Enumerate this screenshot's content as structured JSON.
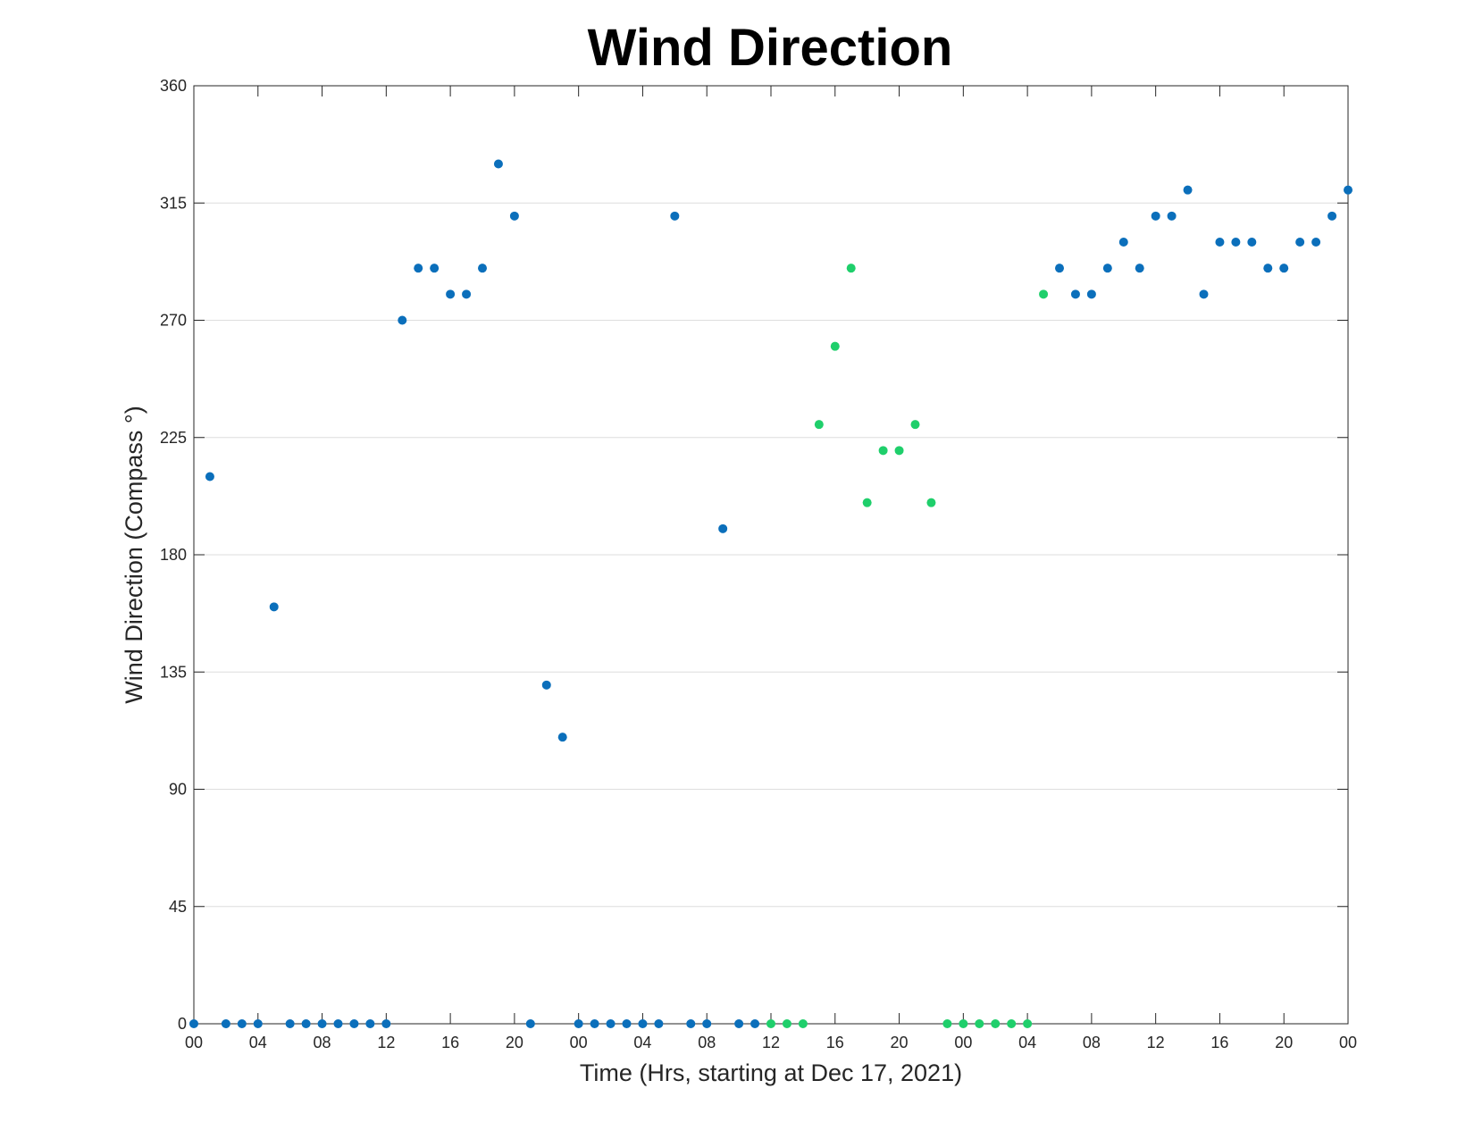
{
  "chart_data": {
    "type": "scatter",
    "title": "Wind Direction",
    "xlabel": "Time (Hrs, starting at Dec 17, 2021)",
    "ylabel": "Wind Direction (Compass °)",
    "ylim": [
      0,
      360
    ],
    "yticks": [
      "0",
      "45",
      "90",
      "135",
      "180",
      "225",
      "270",
      "315",
      "360"
    ],
    "xlim": [
      "2021-12-17 00:00",
      "2021-12-20 00:00"
    ],
    "xticks": [
      "00",
      "04",
      "08",
      "12",
      "16",
      "20",
      "00",
      "04",
      "08",
      "12",
      "16",
      "20",
      "00",
      "04",
      "08",
      "12",
      "16",
      "20",
      "00"
    ],
    "grid": "horizontal",
    "colors": {
      "blue": "#0b6fbb",
      "green": "#1fcf6b"
    },
    "series": [
      {
        "color": "blue",
        "points": [
          [
            "2021-12-17 00:00",
            0
          ],
          [
            "2021-12-17 01:00",
            210
          ],
          [
            "2021-12-17 02:00",
            0
          ],
          [
            "2021-12-17 03:00",
            0
          ],
          [
            "2021-12-17 04:00",
            0
          ],
          [
            "2021-12-17 05:00",
            160
          ],
          [
            "2021-12-17 06:00",
            0
          ],
          [
            "2021-12-17 07:00",
            0
          ],
          [
            "2021-12-17 08:00",
            0
          ],
          [
            "2021-12-17 09:00",
            0
          ],
          [
            "2021-12-17 10:00",
            0
          ],
          [
            "2021-12-17 11:00",
            0
          ],
          [
            "2021-12-17 12:00",
            0
          ],
          [
            "2021-12-17 13:00",
            270
          ],
          [
            "2021-12-17 14:00",
            290
          ],
          [
            "2021-12-17 15:00",
            290
          ],
          [
            "2021-12-17 16:00",
            280
          ],
          [
            "2021-12-17 17:00",
            280
          ],
          [
            "2021-12-17 18:00",
            290
          ],
          [
            "2021-12-17 19:00",
            330
          ],
          [
            "2021-12-17 20:00",
            310
          ],
          [
            "2021-12-17 21:00",
            0
          ],
          [
            "2021-12-17 22:00",
            130
          ],
          [
            "2021-12-17 23:00",
            110
          ],
          [
            "2021-12-18 00:00",
            0
          ],
          [
            "2021-12-18 01:00",
            0
          ],
          [
            "2021-12-18 02:00",
            0
          ],
          [
            "2021-12-18 03:00",
            0
          ],
          [
            "2021-12-18 04:00",
            0
          ],
          [
            "2021-12-18 05:00",
            0
          ],
          [
            "2021-12-18 06:00",
            310
          ],
          [
            "2021-12-18 07:00",
            0
          ],
          [
            "2021-12-18 08:00",
            0
          ],
          [
            "2021-12-18 09:00",
            190
          ],
          [
            "2021-12-18 10:00",
            0
          ],
          [
            "2021-12-18 11:00",
            0
          ],
          [
            "2021-12-19 06:00",
            290
          ],
          [
            "2021-12-19 07:00",
            280
          ],
          [
            "2021-12-19 08:00",
            280
          ],
          [
            "2021-12-19 09:00",
            290
          ],
          [
            "2021-12-19 10:00",
            300
          ],
          [
            "2021-12-19 11:00",
            290
          ],
          [
            "2021-12-19 12:00",
            310
          ],
          [
            "2021-12-19 13:00",
            310
          ],
          [
            "2021-12-19 14:00",
            320
          ],
          [
            "2021-12-19 15:00",
            280
          ],
          [
            "2021-12-19 16:00",
            300
          ],
          [
            "2021-12-19 17:00",
            300
          ],
          [
            "2021-12-19 18:00",
            300
          ],
          [
            "2021-12-19 19:00",
            290
          ],
          [
            "2021-12-19 20:00",
            290
          ],
          [
            "2021-12-19 21:00",
            300
          ],
          [
            "2021-12-19 22:00",
            300
          ],
          [
            "2021-12-19 23:00",
            310
          ],
          [
            "2021-12-20 00:00",
            320
          ]
        ]
      },
      {
        "color": "green",
        "points": [
          [
            "2021-12-18 12:00",
            0
          ],
          [
            "2021-12-18 13:00",
            0
          ],
          [
            "2021-12-18 14:00",
            0
          ],
          [
            "2021-12-18 15:00",
            230
          ],
          [
            "2021-12-18 16:00",
            260
          ],
          [
            "2021-12-18 17:00",
            290
          ],
          [
            "2021-12-18 18:00",
            200
          ],
          [
            "2021-12-18 19:00",
            220
          ],
          [
            "2021-12-18 20:00",
            220
          ],
          [
            "2021-12-18 21:00",
            230
          ],
          [
            "2021-12-18 22:00",
            200
          ],
          [
            "2021-12-18 23:00",
            0
          ],
          [
            "2021-12-19 00:00",
            0
          ],
          [
            "2021-12-19 01:00",
            0
          ],
          [
            "2021-12-19 02:00",
            0
          ],
          [
            "2021-12-19 03:00",
            0
          ],
          [
            "2021-12-19 04:00",
            0
          ],
          [
            "2021-12-19 05:00",
            280
          ]
        ]
      }
    ]
  }
}
